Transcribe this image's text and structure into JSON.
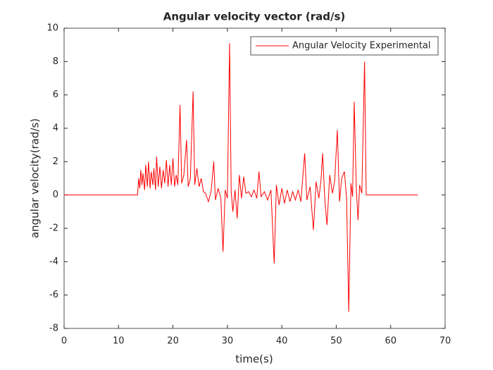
{
  "chart_data": {
    "type": "line",
    "title": "Angular velocity vector (rad/s)",
    "xlabel": "time(s)",
    "ylabel": "angular velocity(rad/s)",
    "x": [
      0,
      13.5,
      13.7,
      13.9,
      14.1,
      14.3,
      14.5,
      14.8,
      15.0,
      15.3,
      15.5,
      15.8,
      16.0,
      16.3,
      16.5,
      16.8,
      17.0,
      17.3,
      17.6,
      17.9,
      18.2,
      18.5,
      18.8,
      19.1,
      19.4,
      19.7,
      20.0,
      20.3,
      20.6,
      20.9,
      21.3,
      21.6,
      22.0,
      22.5,
      22.8,
      23.2,
      23.7,
      24.0,
      24.4,
      24.8,
      25.2,
      25.6,
      26.0,
      26.5,
      27.0,
      27.5,
      27.8,
      28.3,
      28.8,
      29.2,
      29.6,
      30.0,
      30.4,
      30.7,
      31.0,
      31.4,
      31.8,
      32.2,
      32.6,
      33.0,
      33.4,
      33.9,
      34.4,
      34.9,
      35.4,
      35.8,
      36.2,
      36.8,
      37.4,
      38.0,
      38.6,
      39.0,
      39.5,
      40.0,
      40.5,
      41.0,
      41.5,
      42.0,
      42.5,
      43.0,
      43.5,
      44.2,
      44.6,
      45.2,
      45.8,
      46.3,
      46.8,
      47.2,
      47.5,
      47.9,
      48.3,
      48.8,
      49.3,
      49.7,
      50.2,
      50.6,
      51.0,
      51.5,
      51.9,
      52.3,
      52.7,
      53.0,
      53.3,
      53.7,
      54.0,
      54.3,
      54.7,
      55.2,
      55.5,
      65
    ],
    "series": [
      {
        "name": "Angular Velocity Experimental",
        "color": "#ff0000",
        "values": [
          0,
          0,
          1.0,
          0.4,
          1.5,
          0.6,
          1.3,
          0.3,
          1.8,
          0.5,
          2.0,
          0.4,
          1.4,
          0.6,
          1.6,
          0.3,
          2.3,
          0.5,
          1.7,
          0.4,
          1.5,
          0.7,
          2.1,
          0.5,
          1.8,
          0.6,
          2.2,
          0.5,
          1.2,
          0.6,
          5.4,
          0.7,
          1.2,
          3.3,
          0.5,
          1.0,
          6.2,
          0.6,
          1.6,
          0.5,
          1.0,
          0.2,
          0.1,
          -0.4,
          0.2,
          2.0,
          -0.3,
          0.4,
          -0.2,
          -3.4,
          0.3,
          -0.2,
          9.1,
          0.2,
          -1.0,
          0.3,
          -1.4,
          1.2,
          -0.2,
          1.1,
          0.1,
          0.2,
          -0.1,
          0.3,
          -0.2,
          1.4,
          -0.1,
          0.2,
          -0.3,
          0.3,
          -4.1,
          0.6,
          -0.6,
          0.4,
          -0.5,
          0.3,
          -0.4,
          0.2,
          -0.3,
          0.3,
          -0.4,
          2.5,
          -0.3,
          0.5,
          -2.1,
          0.8,
          -0.2,
          0.9,
          2.5,
          -0.3,
          -1.8,
          1.2,
          0.1,
          0.8,
          3.9,
          -0.4,
          1.0,
          1.4,
          -0.2,
          -7.0,
          0.7,
          -0.1,
          5.6,
          0.3,
          -1.5,
          0.6,
          0.1,
          8.0,
          0,
          0
        ]
      }
    ],
    "xlim": [
      0,
      70
    ],
    "xticks": [
      0,
      10,
      20,
      30,
      40,
      50,
      60,
      70
    ],
    "ylim": [
      -8,
      10
    ],
    "yticks": [
      -8,
      -6,
      -4,
      -2,
      0,
      2,
      4,
      6,
      8,
      10
    ],
    "legend": "top-right",
    "grid": false
  }
}
